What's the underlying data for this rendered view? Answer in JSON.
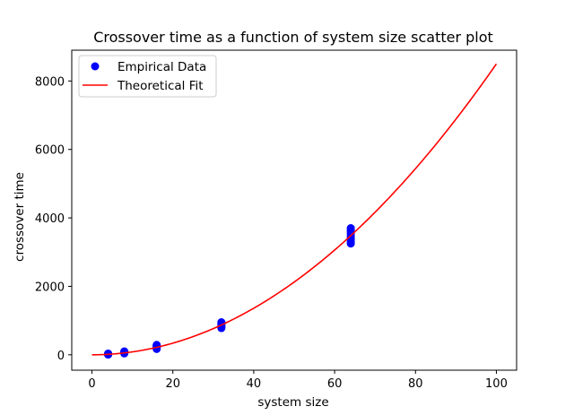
{
  "chart_data": {
    "type": "scatter",
    "title": "Crossover time as a function of system size scatter plot",
    "xlabel": "system size",
    "ylabel": "crossover time",
    "xlim": [
      -5,
      105
    ],
    "ylim": [
      -450,
      8900
    ],
    "xticks": [
      0,
      20,
      40,
      60,
      80,
      100
    ],
    "yticks": [
      0,
      2000,
      4000,
      6000,
      8000
    ],
    "grid": false,
    "legend_position": "top-left",
    "series": [
      {
        "name": "Empirical Data",
        "kind": "scatter",
        "color": "#0000ff",
        "points": [
          [
            4,
            5
          ],
          [
            4,
            10
          ],
          [
            4,
            15
          ],
          [
            4,
            20
          ],
          [
            4,
            25
          ],
          [
            4,
            30
          ],
          [
            4,
            35
          ],
          [
            8,
            40
          ],
          [
            8,
            50
          ],
          [
            8,
            60
          ],
          [
            8,
            70
          ],
          [
            8,
            80
          ],
          [
            8,
            90
          ],
          [
            8,
            100
          ],
          [
            16,
            170
          ],
          [
            16,
            190
          ],
          [
            16,
            210
          ],
          [
            16,
            230
          ],
          [
            16,
            250
          ],
          [
            16,
            270
          ],
          [
            16,
            290
          ],
          [
            32,
            780
          ],
          [
            32,
            800
          ],
          [
            32,
            830
          ],
          [
            32,
            860
          ],
          [
            32,
            890
          ],
          [
            32,
            920
          ],
          [
            32,
            950
          ],
          [
            64,
            3250
          ],
          [
            64,
            3300
          ],
          [
            64,
            3360
          ],
          [
            64,
            3420
          ],
          [
            64,
            3480
          ],
          [
            64,
            3540
          ],
          [
            64,
            3600
          ],
          [
            64,
            3650
          ],
          [
            64,
            3700
          ]
        ]
      },
      {
        "name": "Theoretical Fit",
        "kind": "line",
        "color": "#ff0000",
        "function": "y = 0.85 * x^2",
        "x_range": [
          0,
          100
        ]
      }
    ]
  }
}
